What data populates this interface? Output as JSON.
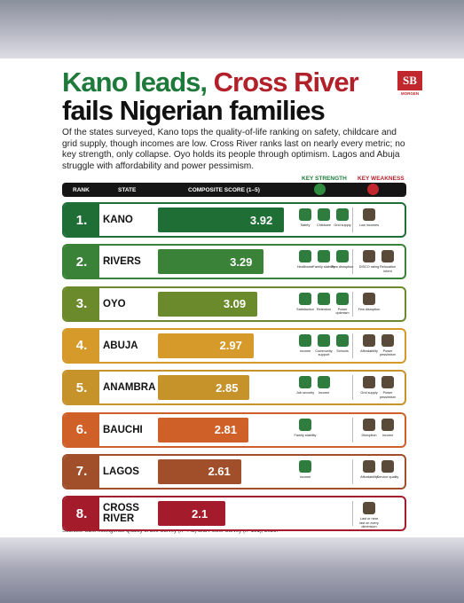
{
  "header": {
    "title_part1": "Kano leads,",
    "title_part2": "Cross River",
    "title_part3": "fails Nigerian families",
    "logo": "SB",
    "logo_sub": "MORGEN",
    "intro": "Of the states surveyed, Kano tops the quality-of-life ranking on safety, childcare and grid supply, though incomes are low. Cross River ranks last on nearly every metric; no key strength, only collapse. Oyo holds its people through optimism. Lagos and Abuja struggle with affordability and power pessimism."
  },
  "chart_data": {
    "type": "bar",
    "columns": {
      "rank": "RANK",
      "state": "STATE",
      "score": "COMPOSITE SCORE (1–5)",
      "strength": "KEY STRENGTH",
      "weakness": "KEY WEAKNESS"
    },
    "ranks": [
      "1.",
      "2.",
      "3.",
      "4.",
      "5.",
      "6.",
      "7.",
      "8."
    ],
    "categories": [
      "KANO",
      "RIVERS",
      "OYO",
      "ABUJA",
      "ANAMBRA",
      "BAUCHI",
      "LAGOS",
      "CROSS RIVER"
    ],
    "values": [
      3.92,
      3.29,
      3.09,
      2.97,
      2.85,
      2.81,
      2.61,
      2.1
    ],
    "colors": [
      "#1f6e35",
      "#3a8238",
      "#6b8a2c",
      "#d69a2a",
      "#c6922a",
      "#cf6128",
      "#a14f2a",
      "#a41c2b"
    ],
    "strengths": [
      [
        "Safety",
        "Childcare",
        "Grid supply"
      ],
      [
        "Healthcare",
        "Family stability",
        "Few disruption"
      ],
      [
        "Satisfaction",
        "Retention",
        "Power optimism"
      ],
      [
        "Income",
        "Community support",
        "Schools"
      ],
      [
        "Job security",
        "Income"
      ],
      [
        "Family stability"
      ],
      [
        "Income"
      ],
      []
    ],
    "weaknesses": [
      [
        "Low incomes"
      ],
      [
        "DISCO rating",
        "Relocation intent"
      ],
      [
        "Few disruption"
      ],
      [
        "Affordability",
        "Power pessimism"
      ],
      [
        "Grid supply",
        "Power pessimism"
      ],
      [
        "Disruption",
        "Income"
      ],
      [
        "Affordability",
        "Service quality"
      ],
      [
        "Last or near last on every dimension"
      ]
    ]
  },
  "footer": {
    "source": "Sources: SBM Intelligence Quality of Life Survey (n=442) and Power Survey (n=191), 2026."
  }
}
